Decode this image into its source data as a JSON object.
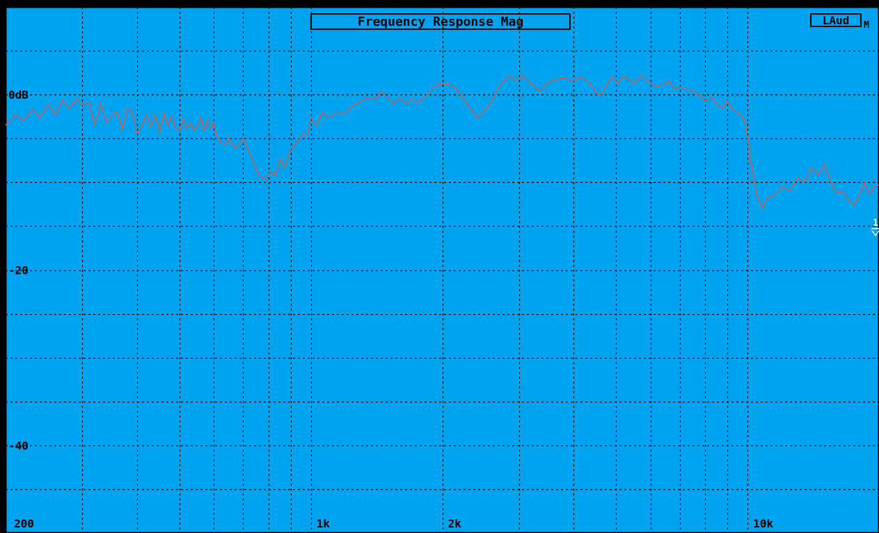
{
  "header": {
    "title": "Frequency Response Mag",
    "badge": "LAud",
    "badge_suffix": "M",
    "right_edge_marker": "1"
  },
  "colors": {
    "background": "#00A3F0",
    "grid": "#000000",
    "trace": "#C0605F",
    "frame": "#000000",
    "outer": "#000000"
  },
  "chart_data": {
    "type": "line",
    "title": "Frequency Response Mag",
    "x_scale": "log",
    "xlim": [
      200,
      20000
    ],
    "ylim": [
      -50,
      10
    ],
    "grid": true,
    "y_ticks": [
      {
        "value": 0,
        "label": "0dB"
      },
      {
        "value": -20,
        "label": "-20"
      },
      {
        "value": -40,
        "label": "-40"
      }
    ],
    "y_gridlines": [
      5,
      0,
      -5,
      -10,
      -15,
      -20,
      -25,
      -30,
      -35,
      -40,
      -45
    ],
    "x_ticks": [
      {
        "value": 200,
        "label": "200"
      },
      {
        "value": 1000,
        "label": "1k"
      },
      {
        "value": 2000,
        "label": "2k"
      },
      {
        "value": 10000,
        "label": "10k"
      }
    ],
    "x_gridlines": [
      300,
      400,
      500,
      600,
      700,
      800,
      900,
      1000,
      2000,
      3000,
      4000,
      5000,
      6000,
      7000,
      8000,
      9000,
      10000
    ],
    "series": [
      {
        "points": [
          [
            200,
            -3.5
          ],
          [
            210,
            -2.3
          ],
          [
            220,
            -3.0
          ],
          [
            230,
            -1.7
          ],
          [
            240,
            -2.6
          ],
          [
            250,
            -1.1
          ],
          [
            260,
            -2.3
          ],
          [
            270,
            -0.6
          ],
          [
            280,
            -1.6
          ],
          [
            290,
            -0.5
          ],
          [
            300,
            -1.2
          ],
          [
            310,
            -0.9
          ],
          [
            320,
            -3.5
          ],
          [
            330,
            -1.0
          ],
          [
            340,
            -3.2
          ],
          [
            350,
            -2.4
          ],
          [
            360,
            -1.9
          ],
          [
            370,
            -4.0
          ],
          [
            380,
            -1.6
          ],
          [
            390,
            -2.0
          ],
          [
            400,
            -4.5
          ],
          [
            410,
            -3.6
          ],
          [
            420,
            -2.3
          ],
          [
            430,
            -3.7
          ],
          [
            440,
            -2.2
          ],
          [
            450,
            -4.4
          ],
          [
            460,
            -2.1
          ],
          [
            470,
            -3.5
          ],
          [
            480,
            -2.4
          ],
          [
            490,
            -3.9
          ],
          [
            500,
            -4.1
          ],
          [
            510,
            -2.7
          ],
          [
            520,
            -3.9
          ],
          [
            530,
            -3.2
          ],
          [
            540,
            -4.1
          ],
          [
            550,
            -3.6
          ],
          [
            560,
            -2.6
          ],
          [
            570,
            -4.1
          ],
          [
            580,
            -2.9
          ],
          [
            590,
            -3.9
          ],
          [
            600,
            -3.2
          ],
          [
            610,
            -5.0
          ],
          [
            620,
            -5.4
          ],
          [
            640,
            -5.7
          ],
          [
            650,
            -4.9
          ],
          [
            670,
            -6.1
          ],
          [
            680,
            -5.8
          ],
          [
            700,
            -5.1
          ],
          [
            720,
            -6.4
          ],
          [
            740,
            -7.8
          ],
          [
            760,
            -9.2
          ],
          [
            790,
            -9.7
          ],
          [
            810,
            -8.7
          ],
          [
            830,
            -9.3
          ],
          [
            850,
            -7.3
          ],
          [
            870,
            -8.3
          ],
          [
            900,
            -6.2
          ],
          [
            920,
            -5.8
          ],
          [
            950,
            -4.6
          ],
          [
            980,
            -4.6
          ],
          [
            1000,
            -2.6
          ],
          [
            1030,
            -3.6
          ],
          [
            1060,
            -2.0
          ],
          [
            1100,
            -2.6
          ],
          [
            1150,
            -2.0
          ],
          [
            1200,
            -2.1
          ],
          [
            1250,
            -1.2
          ],
          [
            1300,
            -0.8
          ],
          [
            1350,
            -0.3
          ],
          [
            1400,
            -0.6
          ],
          [
            1450,
            0.3
          ],
          [
            1500,
            -0.4
          ],
          [
            1550,
            -1.0
          ],
          [
            1600,
            -0.4
          ],
          [
            1650,
            -1.1
          ],
          [
            1700,
            -0.4
          ],
          [
            1750,
            -1.0
          ],
          [
            1800,
            -0.6
          ],
          [
            1850,
            0.1
          ],
          [
            1950,
            1.2
          ],
          [
            2050,
            1.3
          ],
          [
            2150,
            0.7
          ],
          [
            2300,
            -1.3
          ],
          [
            2400,
            -2.6
          ],
          [
            2550,
            -1.4
          ],
          [
            2700,
            1.0
          ],
          [
            2850,
            2.1
          ],
          [
            2950,
            1.6
          ],
          [
            3050,
            2.2
          ],
          [
            3200,
            1.2
          ],
          [
            3350,
            0.4
          ],
          [
            3450,
            1.2
          ],
          [
            3600,
            1.7
          ],
          [
            3800,
            1.9
          ],
          [
            4000,
            1.6
          ],
          [
            4150,
            2.0
          ],
          [
            4300,
            1.6
          ],
          [
            4500,
            0.3
          ],
          [
            4600,
            -0.1
          ],
          [
            4750,
            1.1
          ],
          [
            4900,
            2.0
          ],
          [
            5050,
            1.3
          ],
          [
            5200,
            2.1
          ],
          [
            5350,
            1.8
          ],
          [
            5500,
            1.2
          ],
          [
            5700,
            2.2
          ],
          [
            5850,
            1.8
          ],
          [
            6000,
            1.3
          ],
          [
            6200,
            0.9
          ],
          [
            6400,
            1.1
          ],
          [
            6600,
            1.6
          ],
          [
            6800,
            0.6
          ],
          [
            7000,
            0.9
          ],
          [
            7300,
            0.6
          ],
          [
            7600,
            0.3
          ],
          [
            7800,
            -0.3
          ],
          [
            8000,
            -0.7
          ],
          [
            8300,
            -0.3
          ],
          [
            8500,
            -1.2
          ],
          [
            8800,
            -1.5
          ],
          [
            9000,
            -0.7
          ],
          [
            9200,
            -1.6
          ],
          [
            9500,
            -2.1
          ],
          [
            9700,
            -2.4
          ],
          [
            9900,
            -3.3
          ],
          [
            10200,
            -8.0
          ],
          [
            10500,
            -11.5
          ],
          [
            10800,
            -13.0
          ],
          [
            11100,
            -11.8
          ],
          [
            11500,
            -11.5
          ],
          [
            12000,
            -10.5
          ],
          [
            12500,
            -11.0
          ],
          [
            13000,
            -9.5
          ],
          [
            13500,
            -10.0
          ],
          [
            14000,
            -8.3
          ],
          [
            14500,
            -9.2
          ],
          [
            15000,
            -7.9
          ],
          [
            15500,
            -10.0
          ],
          [
            16000,
            -11.2
          ],
          [
            16500,
            -11.0
          ],
          [
            17000,
            -12.0
          ],
          [
            17500,
            -12.6
          ],
          [
            18000,
            -11.5
          ],
          [
            18500,
            -10.0
          ],
          [
            19000,
            -11.3
          ],
          [
            19500,
            -10.5
          ],
          [
            20000,
            -10.3
          ]
        ]
      }
    ]
  }
}
